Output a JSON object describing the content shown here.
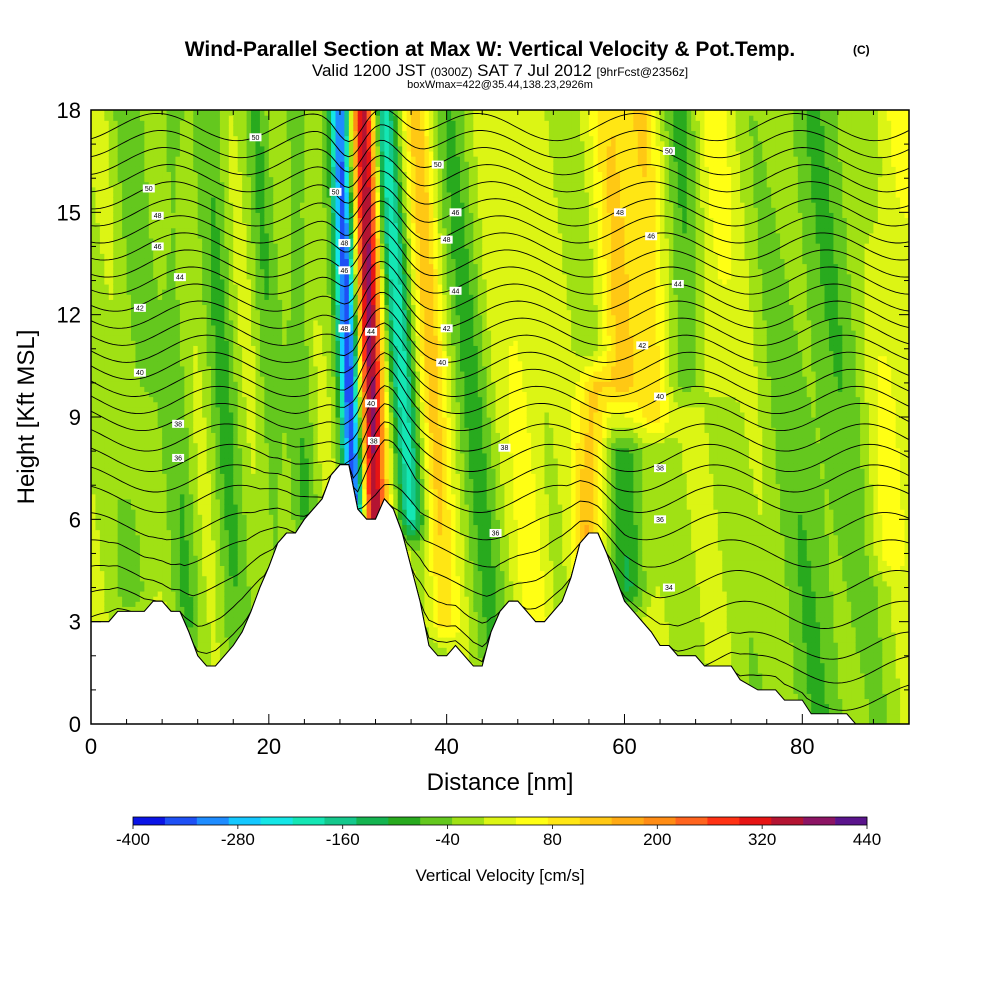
{
  "title": {
    "main": "Wind-Parallel Section at Max W: Vertical Velocity & Pot.Temp.",
    "main_sup": "(C)",
    "line2_a": "Valid 1200 JST",
    "line2_b": "(0300Z)",
    "line2_c": "SAT 7 Jul 2012",
    "line2_d": "[9hrFcst@2356z]",
    "line3": "boxWmax=422@35.44,138.23,2926m"
  },
  "chart_data": {
    "type": "heatmap",
    "xlabel": "Distance [nm]",
    "ylabel": "Height [Kft MSL]",
    "xlim": [
      0,
      92
    ],
    "ylim": [
      0,
      18
    ],
    "x_ticks": [
      0,
      20,
      40,
      60,
      80
    ],
    "y_ticks": [
      0,
      3,
      6,
      9,
      12,
      15,
      18
    ],
    "grid": false,
    "colorbar": {
      "title": "Vertical Velocity [cm/s]",
      "placement": "bottom",
      "min": -400,
      "max": 440,
      "step": 40,
      "tick_values": [
        -400,
        -280,
        -160,
        -40,
        80,
        200,
        320,
        440
      ],
      "tick_labels": [
        "-400",
        "-280",
        "-160",
        "-40",
        "80",
        "200",
        "320",
        "440"
      ],
      "colors": [
        "#0a14e6",
        "#1e50f5",
        "#1e8cff",
        "#14c8ff",
        "#14e6e6",
        "#14e6b4",
        "#14c88c",
        "#14b450",
        "#28aa1e",
        "#64c81e",
        "#a0e114",
        "#dcf514",
        "#ffff14",
        "#ffe614",
        "#ffc814",
        "#ffaa14",
        "#ff8c14",
        "#ff641e",
        "#ff3214",
        "#e61414",
        "#b41432",
        "#8c1464",
        "#5a148c"
      ]
    },
    "terrain_heights_kft": [
      [
        0,
        3.0
      ],
      [
        2,
        3.0
      ],
      [
        3,
        3.3
      ],
      [
        6,
        3.3
      ],
      [
        7,
        3.6
      ],
      [
        8,
        3.6
      ],
      [
        9,
        3.3
      ],
      [
        10,
        3.3
      ],
      [
        11,
        2.7
      ],
      [
        12,
        2.0
      ],
      [
        13,
        1.7
      ],
      [
        14,
        1.7
      ],
      [
        15,
        2.0
      ],
      [
        16,
        2.3
      ],
      [
        17,
        2.7
      ],
      [
        18,
        3.3
      ],
      [
        19,
        4.0
      ],
      [
        20,
        4.6
      ],
      [
        21,
        5.3
      ],
      [
        22,
        5.6
      ],
      [
        23,
        5.6
      ],
      [
        24,
        6.0
      ],
      [
        25,
        6.3
      ],
      [
        26,
        6.6
      ],
      [
        27,
        7.3
      ],
      [
        28,
        7.6
      ],
      [
        29,
        7.6
      ],
      [
        30,
        6.3
      ],
      [
        31,
        6.0
      ],
      [
        32,
        6.0
      ],
      [
        33,
        6.6
      ],
      [
        34,
        6.3
      ],
      [
        35,
        5.6
      ],
      [
        36,
        4.6
      ],
      [
        37,
        3.6
      ],
      [
        38,
        2.3
      ],
      [
        39,
        2.0
      ],
      [
        40,
        2.0
      ],
      [
        41,
        2.3
      ],
      [
        42,
        2.0
      ],
      [
        43,
        1.7
      ],
      [
        44,
        1.7
      ],
      [
        45,
        2.7
      ],
      [
        46,
        3.3
      ],
      [
        47,
        3.6
      ],
      [
        48,
        3.6
      ],
      [
        49,
        3.3
      ],
      [
        50,
        3.0
      ],
      [
        51,
        3.0
      ],
      [
        52,
        3.3
      ],
      [
        53,
        3.6
      ],
      [
        54,
        4.3
      ],
      [
        55,
        5.3
      ],
      [
        56,
        5.6
      ],
      [
        57,
        5.6
      ],
      [
        58,
        5.0
      ],
      [
        59,
        4.3
      ],
      [
        60,
        3.6
      ],
      [
        61,
        3.3
      ],
      [
        62,
        3.0
      ],
      [
        63,
        2.7
      ],
      [
        64,
        2.3
      ],
      [
        65,
        2.3
      ],
      [
        66,
        2.0
      ],
      [
        68,
        2.0
      ],
      [
        69,
        1.7
      ],
      [
        72,
        1.7
      ],
      [
        73,
        1.3
      ],
      [
        75,
        1.0
      ],
      [
        77,
        1.0
      ],
      [
        78,
        0.7
      ],
      [
        80,
        0.7
      ],
      [
        81,
        0.3
      ],
      [
        85,
        0.3
      ],
      [
        86,
        0.0
      ],
      [
        92,
        0.0
      ]
    ],
    "velocity_features": [
      {
        "x": 29.2,
        "slope": -0.14,
        "width": 1.1,
        "amp": -380,
        "z0": 4,
        "z1": 18
      },
      {
        "x": 31.6,
        "slope": -0.1,
        "width": 1.3,
        "amp": 400,
        "z0": 5,
        "z1": 18
      },
      {
        "x": 35.2,
        "slope": -0.25,
        "width": 1.4,
        "amp": -200,
        "z0": 6,
        "z1": 18
      },
      {
        "x": 38.5,
        "slope": -0.2,
        "width": 1.5,
        "amp": 130,
        "z0": 3,
        "z1": 18
      },
      {
        "x": 43.0,
        "slope": -0.25,
        "width": 2.0,
        "amp": -70,
        "z0": 2,
        "z1": 18
      },
      {
        "x": 49.0,
        "slope": -0.25,
        "width": 2.0,
        "amp": 60,
        "z0": 3,
        "z1": 18
      },
      {
        "x": 56.5,
        "slope": 0.15,
        "width": 1.8,
        "amp": 150,
        "z0": 5,
        "z1": 10
      },
      {
        "x": 60.0,
        "slope": -0.15,
        "width": 2.0,
        "amp": 120,
        "z0": 9,
        "z1": 18
      },
      {
        "x": 60.0,
        "slope": -0.15,
        "width": 2.0,
        "amp": -110,
        "z0": 4,
        "z1": 9
      },
      {
        "x": 63.5,
        "slope": -0.2,
        "width": 1.8,
        "amp": 130,
        "z0": 9,
        "z1": 18
      },
      {
        "x": 67.5,
        "slope": -0.15,
        "width": 2.2,
        "amp": -100,
        "z0": 10,
        "z1": 18
      },
      {
        "x": 70.0,
        "slope": -0.1,
        "width": 2.5,
        "amp": 70,
        "z0": 10,
        "z1": 18
      },
      {
        "x": 15.0,
        "slope": -0.15,
        "width": 1.5,
        "amp": -70,
        "z0": 2,
        "z1": 18
      },
      {
        "x": 20.0,
        "slope": -0.15,
        "width": 1.3,
        "amp": -60,
        "z0": 5,
        "z1": 18
      },
      {
        "x": 24.0,
        "slope": -0.15,
        "width": 1.3,
        "amp": -70,
        "z0": 6,
        "z1": 18
      },
      {
        "x": 10.0,
        "slope": -0.15,
        "width": 1.5,
        "amp": -60,
        "z0": 3,
        "z1": 18
      },
      {
        "x": 5.0,
        "slope": -0.1,
        "width": 2.0,
        "amp": -50,
        "z0": 4,
        "z1": 18
      },
      {
        "x": 82.0,
        "slope": 0.0,
        "width": 6.0,
        "amp": -60,
        "z0": 0,
        "z1": 18
      },
      {
        "x": 90.0,
        "slope": 0.0,
        "width": 2.5,
        "amp": 60,
        "z0": 5,
        "z1": 18
      }
    ],
    "theta_contour_base_heights_kft": [
      0.8,
      1.6,
      2.3,
      3.2,
      4.1,
      5.0,
      5.8,
      6.6,
      7.2,
      7.8,
      8.4,
      9.0,
      9.5,
      10.0,
      10.5,
      11.0,
      11.5,
      12.0,
      12.5,
      13.0,
      13.5,
      14.0,
      14.5,
      15.0,
      15.5,
      16.0,
      16.5,
      17.0,
      17.5
    ],
    "theta_labels": [
      {
        "x": 18.5,
        "z": 17.2,
        "text": "50"
      },
      {
        "x": 6.5,
        "z": 15.7,
        "text": "50"
      },
      {
        "x": 7.5,
        "z": 14.9,
        "text": "48"
      },
      {
        "x": 7.5,
        "z": 14.0,
        "text": "46"
      },
      {
        "x": 10.0,
        "z": 13.1,
        "text": "44"
      },
      {
        "x": 5.5,
        "z": 12.2,
        "text": "42"
      },
      {
        "x": 5.5,
        "z": 10.3,
        "text": "40"
      },
      {
        "x": 9.8,
        "z": 8.8,
        "text": "38"
      },
      {
        "x": 9.8,
        "z": 7.8,
        "text": "36"
      },
      {
        "x": 27.5,
        "z": 15.6,
        "text": "50"
      },
      {
        "x": 28.5,
        "z": 14.1,
        "text": "48"
      },
      {
        "x": 28.5,
        "z": 13.3,
        "text": "46"
      },
      {
        "x": 28.5,
        "z": 11.6,
        "text": "48"
      },
      {
        "x": 31.5,
        "z": 11.5,
        "text": "44"
      },
      {
        "x": 31.5,
        "z": 9.4,
        "text": "40"
      },
      {
        "x": 31.8,
        "z": 8.3,
        "text": "38"
      },
      {
        "x": 39.0,
        "z": 16.4,
        "text": "50"
      },
      {
        "x": 41.0,
        "z": 15.0,
        "text": "46"
      },
      {
        "x": 40.0,
        "z": 14.2,
        "text": "48"
      },
      {
        "x": 41.0,
        "z": 12.7,
        "text": "44"
      },
      {
        "x": 40.0,
        "z": 11.6,
        "text": "42"
      },
      {
        "x": 39.5,
        "z": 10.6,
        "text": "40"
      },
      {
        "x": 46.5,
        "z": 8.1,
        "text": "38"
      },
      {
        "x": 45.5,
        "z": 5.6,
        "text": "36"
      },
      {
        "x": 65.0,
        "z": 16.8,
        "text": "50"
      },
      {
        "x": 59.5,
        "z": 15.0,
        "text": "48"
      },
      {
        "x": 63.0,
        "z": 14.3,
        "text": "46"
      },
      {
        "x": 66.0,
        "z": 12.9,
        "text": "44"
      },
      {
        "x": 62.0,
        "z": 11.1,
        "text": "42"
      },
      {
        "x": 64.0,
        "z": 9.6,
        "text": "40"
      },
      {
        "x": 64.0,
        "z": 7.5,
        "text": "38"
      },
      {
        "x": 64.0,
        "z": 6.0,
        "text": "36"
      },
      {
        "x": 65.0,
        "z": 4.0,
        "text": "34"
      }
    ]
  }
}
